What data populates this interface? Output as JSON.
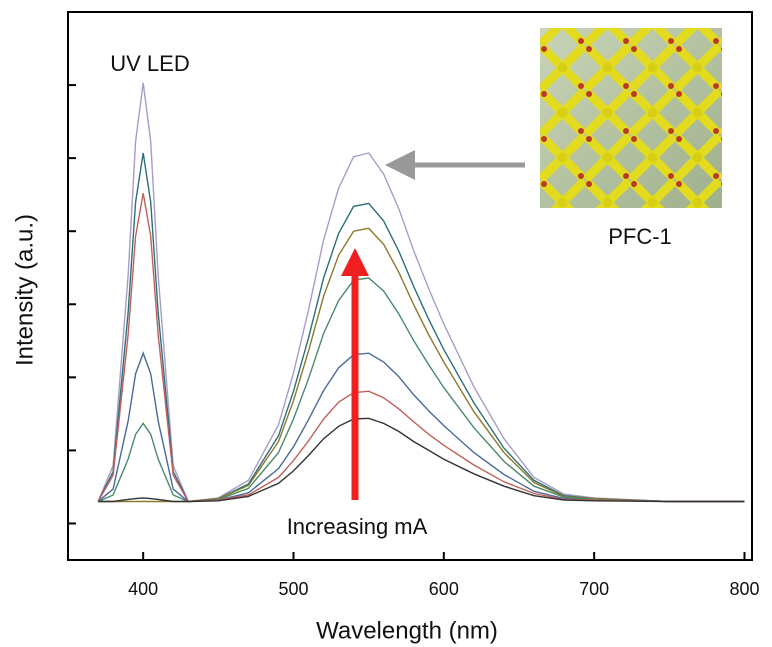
{
  "chart_data": {
    "type": "line",
    "x_label": "Wavelength (nm)",
    "y_label": "Intensity (a.u.)",
    "annotations": [
      "UV LED",
      "PFC-1",
      "Increasing mA"
    ],
    "x": [
      370,
      380,
      390,
      395,
      400,
      405,
      410,
      420,
      430,
      450,
      470,
      490,
      500,
      510,
      520,
      530,
      540,
      550,
      560,
      570,
      580,
      590,
      600,
      620,
      640,
      660,
      680,
      700,
      750,
      800
    ],
    "series": [
      {
        "color": "#a89cc8",
        "values": [
          0.3,
          0.79,
          3.39,
          5.23,
          6.03,
          5.23,
          3.39,
          0.79,
          0.3,
          0.35,
          0.59,
          1.35,
          2.06,
          2.92,
          3.88,
          4.59,
          5.02,
          5.07,
          4.78,
          4.31,
          3.73,
          3.21,
          2.73,
          1.87,
          1.16,
          0.63,
          0.4,
          0.35,
          0.3,
          0.3
        ]
      },
      {
        "color": "#2f6f7a",
        "values": [
          0.3,
          0.71,
          2.88,
          4.4,
          5.07,
          4.4,
          2.88,
          0.71,
          0.3,
          0.34,
          0.54,
          1.2,
          1.81,
          2.54,
          3.36,
          3.97,
          4.34,
          4.38,
          4.14,
          3.73,
          3.24,
          2.79,
          2.38,
          1.65,
          1.03,
          0.59,
          0.38,
          0.34,
          0.3,
          0.3
        ]
      },
      {
        "color": "#8a7a2a",
        "values": [
          0.3,
          0.3,
          0.3,
          0.3,
          0.3,
          0.3,
          0.3,
          0.3,
          0.3,
          0.34,
          0.52,
          1.12,
          1.68,
          2.36,
          3.11,
          3.67,
          4.0,
          4.04,
          3.82,
          3.44,
          2.99,
          2.58,
          2.21,
          1.53,
          0.97,
          0.56,
          0.37,
          0.34,
          0.3,
          0.3
        ]
      },
      {
        "color": "#4a8a6a",
        "values": [
          0.3,
          0.39,
          0.88,
          1.22,
          1.37,
          1.22,
          0.88,
          0.39,
          0.3,
          0.33,
          0.48,
          0.97,
          1.43,
          1.98,
          2.6,
          3.05,
          3.33,
          3.36,
          3.18,
          2.87,
          2.5,
          2.17,
          1.86,
          1.31,
          0.85,
          0.51,
          0.36,
          0.33,
          0.3,
          0.3
        ]
      },
      {
        "color": "#4a6a9a",
        "values": [
          0.3,
          0.47,
          1.4,
          2.05,
          2.33,
          2.05,
          1.4,
          0.47,
          0.3,
          0.32,
          0.42,
          0.75,
          1.05,
          1.42,
          1.82,
          2.13,
          2.31,
          2.33,
          2.21,
          2.01,
          1.76,
          1.54,
          1.34,
          0.97,
          0.67,
          0.44,
          0.34,
          0.32,
          0.3,
          0.3
        ]
      },
      {
        "color": "#c0605a",
        "values": [
          0.3,
          0.66,
          2.58,
          3.93,
          4.52,
          3.93,
          2.58,
          0.66,
          0.3,
          0.32,
          0.39,
          0.63,
          0.86,
          1.13,
          1.43,
          1.66,
          1.79,
          1.81,
          1.72,
          1.57,
          1.39,
          1.22,
          1.07,
          0.8,
          0.57,
          0.41,
          0.33,
          0.32,
          0.3,
          0.3
        ]
      },
      {
        "color": "#333333",
        "values": [
          0.3,
          0.3,
          0.33,
          0.34,
          0.35,
          0.34,
          0.33,
          0.3,
          0.3,
          0.31,
          0.37,
          0.55,
          0.72,
          0.93,
          1.16,
          1.33,
          1.43,
          1.44,
          1.37,
          1.26,
          1.12,
          1.0,
          0.88,
          0.68,
          0.51,
          0.38,
          0.32,
          0.31,
          0.3,
          0.3
        ]
      }
    ],
    "xlim": [
      350,
      805
    ],
    "xticks": [
      400,
      500,
      600,
      700,
      800
    ],
    "ylim": [
      -0.5,
      7.0
    ],
    "yticks": [
      0,
      1,
      2,
      3,
      4,
      5,
      6
    ]
  }
}
